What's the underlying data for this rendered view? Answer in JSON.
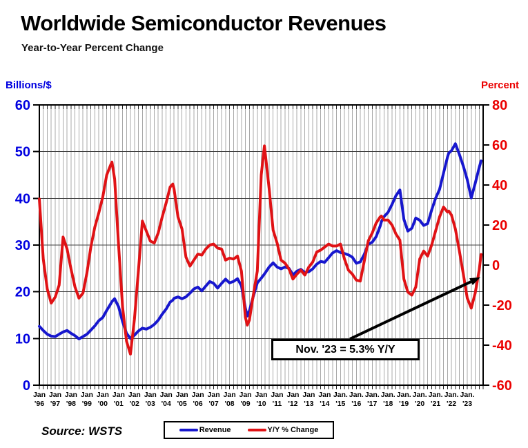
{
  "header": {
    "title": "Worldwide Semiconductor Revenues",
    "subtitle": "Year-to-Year Percent Change"
  },
  "annotation": {
    "text": "Nov. '23 = 5.3% Y/Y",
    "points_to": {
      "x": 2023.87,
      "value_pct": 5.3
    }
  },
  "legend": {
    "items": [
      {
        "label": "Revenue",
        "color": "#1717CE"
      },
      {
        "label": "Y/Y % Change",
        "color": "#E01215"
      }
    ]
  },
  "source": {
    "text": "Source: WSTS"
  },
  "x_axis": {
    "labels": [
      {
        "m": "Jan",
        "y": "'96"
      },
      {
        "m": "Jan",
        "y": "'97"
      },
      {
        "m": "Jan",
        "y": "'98"
      },
      {
        "m": "Jan",
        "y": "'99"
      },
      {
        "m": "Jan",
        "y": "'00"
      },
      {
        "m": "Jan",
        "y": "'01"
      },
      {
        "m": "Jan",
        "y": "'02"
      },
      {
        "m": "Jan",
        "y": "'03"
      },
      {
        "m": "Jan",
        "y": "'04"
      },
      {
        "m": "Jan",
        "y": "'05"
      },
      {
        "m": "Jan",
        "y": "'06"
      },
      {
        "m": "Jan",
        "y": "'07"
      },
      {
        "m": "Jan",
        "y": "'08"
      },
      {
        "m": "Jan",
        "y": "'09"
      },
      {
        "m": "Jan",
        "y": "'10"
      },
      {
        "m": "Jan",
        "y": "'11"
      },
      {
        "m": "Jan",
        "y": "'12"
      },
      {
        "m": "Jan",
        "y": "'13"
      },
      {
        "m": "Jan",
        "y": "'14"
      },
      {
        "m": "Jan.",
        "y": "'15"
      },
      {
        "m": "Jan.",
        "y": "'16"
      },
      {
        "m": "Jan.",
        "y": "'17"
      },
      {
        "m": "Jan.",
        "y": "'18"
      },
      {
        "m": "Jan.",
        "y": "'19"
      },
      {
        "m": "Jan.",
        "y": "'20"
      },
      {
        "m": "Jan.",
        "y": "'21"
      },
      {
        "m": "Jan.",
        "y": "'22"
      },
      {
        "m": "Jan.",
        "y": "'23"
      }
    ]
  },
  "chart_data": {
    "type": "line",
    "title": "Worldwide Semiconductor Revenues",
    "subtitle": "Year-to-Year Percent Change",
    "x_unit": "decimal_year (monthly WSTS data, Jan 1996 - Nov 2023)",
    "x_range": [
      1996,
      2024
    ],
    "left_axis": {
      "label": "Billions/$",
      "range": [
        0,
        60
      ],
      "ticks": [
        0,
        10,
        20,
        30,
        40,
        50,
        60
      ],
      "color": "#0000E0"
    },
    "right_axis": {
      "label": "Percent",
      "range": [
        -60,
        80
      ],
      "ticks": [
        -60,
        -40,
        -20,
        0,
        20,
        40,
        60,
        80
      ],
      "color": "#EB0000"
    },
    "gridlines": {
      "vertical": "quarterly",
      "horizontal": "every 10 on left scale"
    },
    "legend_position": "bottom",
    "x": [
      1996.0,
      1996.25,
      1996.5,
      1996.75,
      1997.0,
      1997.25,
      1997.5,
      1997.75,
      1998.0,
      1998.25,
      1998.5,
      1998.75,
      1999.0,
      1999.25,
      1999.5,
      1999.75,
      2000.0,
      2000.25,
      2000.5,
      2000.58,
      2000.75,
      2001.0,
      2001.25,
      2001.5,
      2001.75,
      2002.0,
      2002.25,
      2002.5,
      2002.75,
      2003.0,
      2003.25,
      2003.5,
      2003.75,
      2004.0,
      2004.25,
      2004.42,
      2004.5,
      2004.75,
      2005.0,
      2005.25,
      2005.5,
      2005.75,
      2006.0,
      2006.25,
      2006.5,
      2006.75,
      2007.0,
      2007.25,
      2007.5,
      2007.75,
      2008.0,
      2008.25,
      2008.5,
      2008.75,
      2009.0,
      2009.12,
      2009.25,
      2009.5,
      2009.75,
      2010.0,
      2010.2,
      2010.5,
      2010.75,
      2011.0,
      2011.25,
      2011.5,
      2011.75,
      2012.0,
      2012.25,
      2012.5,
      2012.75,
      2013.0,
      2013.25,
      2013.5,
      2013.75,
      2014.0,
      2014.25,
      2014.5,
      2014.75,
      2015.0,
      2015.25,
      2015.5,
      2015.75,
      2016.0,
      2016.25,
      2016.5,
      2016.75,
      2017.0,
      2017.25,
      2017.5,
      2017.58,
      2017.75,
      2018.0,
      2018.25,
      2018.5,
      2018.75,
      2019.0,
      2019.25,
      2019.5,
      2019.75,
      2020.0,
      2020.25,
      2020.5,
      2020.75,
      2021.0,
      2021.25,
      2021.5,
      2021.75,
      2021.83,
      2022.0,
      2022.25,
      2022.5,
      2022.75,
      2023.0,
      2023.25,
      2023.5,
      2023.75,
      2023.87
    ],
    "series": [
      {
        "name": "Revenue",
        "axis": "left",
        "units": "US$ billions per month",
        "color": "#1717CE",
        "values": [
          12.6,
          11.7,
          10.9,
          10.5,
          10.4,
          10.9,
          11.4,
          11.7,
          11.1,
          10.6,
          9.9,
          10.4,
          10.9,
          11.8,
          12.7,
          13.8,
          14.5,
          16.0,
          17.4,
          17.9,
          18.5,
          16.8,
          13.6,
          11.1,
          10.0,
          10.7,
          11.6,
          12.2,
          12.0,
          12.4,
          13.0,
          13.9,
          15.2,
          16.3,
          17.8,
          18.2,
          18.6,
          18.9,
          18.5,
          18.9,
          19.7,
          20.6,
          21.0,
          20.2,
          21.2,
          22.2,
          21.8,
          20.8,
          21.8,
          22.7,
          21.9,
          22.2,
          22.8,
          21.3,
          16.5,
          14.8,
          15.9,
          19.0,
          21.9,
          22.9,
          23.8,
          25.3,
          26.2,
          25.3,
          24.9,
          25.3,
          25.0,
          23.6,
          24.4,
          24.8,
          24.1,
          24.3,
          24.9,
          25.9,
          26.5,
          26.3,
          27.3,
          28.3,
          28.8,
          28.4,
          28.2,
          27.9,
          27.4,
          26.1,
          26.4,
          28.0,
          30.2,
          30.6,
          31.8,
          34.0,
          35.0,
          36.1,
          37.0,
          38.7,
          40.6,
          41.8,
          35.5,
          33.0,
          33.6,
          35.8,
          35.3,
          34.2,
          34.6,
          37.5,
          40.0,
          41.9,
          45.4,
          48.8,
          49.7,
          50.2,
          51.7,
          49.4,
          46.9,
          44.0,
          40.1,
          43.2,
          46.6,
          48.0
        ]
      },
      {
        "name": "Y/Y % Change",
        "axis": "right",
        "units": "percent",
        "color": "#E01215",
        "values": [
          33,
          3,
          -12,
          -19,
          -16,
          -10,
          14,
          8,
          -2,
          -11,
          -16.5,
          -14,
          -4,
          9,
          19,
          26,
          34,
          45,
          50,
          51.5,
          43,
          10,
          -21,
          -38,
          -44.5,
          -27,
          -3,
          22,
          17,
          12,
          11,
          16,
          24,
          31,
          39,
          40.5,
          38,
          24,
          18,
          4,
          -0.5,
          2.5,
          5.5,
          5,
          8,
          10,
          10.5,
          8.5,
          8,
          2.5,
          3.5,
          3,
          4.5,
          -3,
          -26,
          -30,
          -27.5,
          -15,
          -3,
          45,
          59.5,
          38,
          17.5,
          11,
          2.5,
          1,
          -2,
          -7,
          -4.5,
          -2.5,
          -5,
          -1,
          1.5,
          6.5,
          7.5,
          9,
          10.5,
          9.5,
          9.5,
          10.5,
          3,
          -2.5,
          -4.5,
          -7.5,
          -8,
          2,
          12,
          16,
          21,
          24,
          24.5,
          22.5,
          22.5,
          20,
          15.5,
          12.5,
          -7,
          -13.5,
          -15,
          -11,
          3,
          7,
          4.5,
          10,
          17,
          24,
          29,
          26.5,
          27,
          25,
          18,
          7,
          -4.5,
          -16.5,
          -21.5,
          -14,
          -2.5,
          5.3
        ]
      }
    ]
  }
}
